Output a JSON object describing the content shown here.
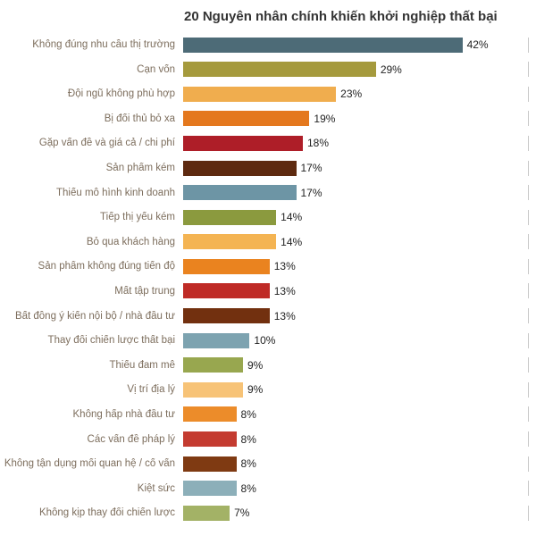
{
  "title": "20 Nguyên nhân chính khiến khởi nghiệp thất bại",
  "chart_data": {
    "type": "bar",
    "orientation": "horizontal",
    "title": "20 Nguyên nhân chính khiến khởi nghiệp thất bại",
    "xlabel": "",
    "ylabel": "",
    "unit": "%",
    "xlim": [
      0,
      52
    ],
    "grid": "right-edge-ticks-only",
    "legend": "none",
    "categories": [
      "Không đúng nhu cầu thị trường",
      "Cạn vốn",
      "Đội ngũ không phù hợp",
      "Bị đối thủ bỏ xa",
      "Gặp vấn đề và giá cả / chi phí",
      "Sản phẩm kém",
      "Thiếu mô hình kinh doanh",
      "Tiếp thị yếu kém",
      "Bỏ qua khách hàng",
      "Sản phẩm không đúng tiến độ",
      "Mất tập trung",
      "Bất đồng ý kiến nội bộ / nhà đầu tư",
      "Thay đổi chiến lược thất bại",
      "Thiếu đam mê",
      "Vị trí địa lý",
      "Không hấp nhà đầu tư",
      "Các vấn đề pháp lý",
      "Không tận dụng mối quan hệ / cố vấn",
      "Kiệt sức",
      "Không kịp thay đổi chiến lược"
    ],
    "values": [
      42,
      29,
      23,
      19,
      18,
      17,
      17,
      14,
      14,
      13,
      13,
      13,
      10,
      9,
      9,
      8,
      8,
      8,
      8,
      7
    ],
    "value_labels": [
      "42%",
      "29%",
      "23%",
      "19%",
      "18%",
      "17%",
      "17%",
      "14%",
      "14%",
      "13%",
      "13%",
      "13%",
      "10%",
      "9%",
      "9%",
      "8%",
      "8%",
      "8%",
      "8%",
      "7%"
    ],
    "bar_colors": [
      "#4d6b77",
      "#a59a3d",
      "#f0ad4e",
      "#e4781e",
      "#ae1e28",
      "#5e2a10",
      "#6d95a5",
      "#8b9a3e",
      "#f4b453",
      "#ea831f",
      "#bf2b26",
      "#72300f",
      "#7da3b0",
      "#98a74f",
      "#f7c377",
      "#ec8c2a",
      "#c43b30",
      "#7f3a12",
      "#8cafb9",
      "#a3b266"
    ],
    "colors": {
      "title": "#333333",
      "category_label": "#7d6e5d",
      "value_label": "#222222",
      "gridline": "#c8c8c8",
      "background": "#ffffff"
    }
  }
}
